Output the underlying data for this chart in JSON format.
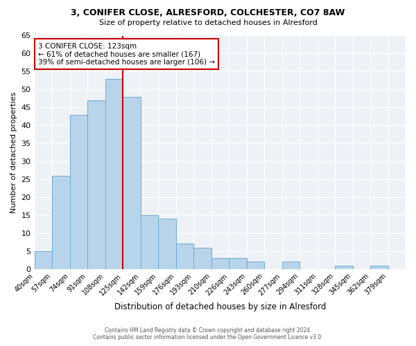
{
  "title1": "3, CONIFER CLOSE, ALRESFORD, COLCHESTER, CO7 8AW",
  "title2": "Size of property relative to detached houses in Alresford",
  "xlabel": "Distribution of detached houses by size in Alresford",
  "ylabel": "Number of detached properties",
  "bin_labels": [
    "40sqm",
    "57sqm",
    "74sqm",
    "91sqm",
    "108sqm",
    "125sqm",
    "142sqm",
    "159sqm",
    "176sqm",
    "193sqm",
    "210sqm",
    "226sqm",
    "243sqm",
    "260sqm",
    "277sqm",
    "294sqm",
    "311sqm",
    "328sqm",
    "345sqm",
    "362sqm",
    "379sqm"
  ],
  "bar_values": [
    5,
    26,
    43,
    47,
    53,
    48,
    15,
    14,
    7,
    6,
    3,
    3,
    2,
    0,
    2,
    0,
    0,
    1,
    0,
    1,
    0
  ],
  "bar_color": "#b8d4ea",
  "bar_edge_color": "#6aaad4",
  "vline_color": "#cc0000",
  "annotation_title": "3 CONIFER CLOSE: 123sqm",
  "annotation_line1": "← 61% of detached houses are smaller (167)",
  "annotation_line2": "39% of semi-detached houses are larger (106) →",
  "annotation_box_color": "#ffffff",
  "annotation_box_edge": "#cc0000",
  "ylim": [
    0,
    65
  ],
  "yticks": [
    0,
    5,
    10,
    15,
    20,
    25,
    30,
    35,
    40,
    45,
    50,
    55,
    60,
    65
  ],
  "footer1": "Contains HM Land Registry data © Crown copyright and database right 2024.",
  "footer2": "Contains public sector information licensed under the Open Government Licence v3.0.",
  "bg_color": "#ffffff",
  "plot_bg_color": "#eef2f7"
}
